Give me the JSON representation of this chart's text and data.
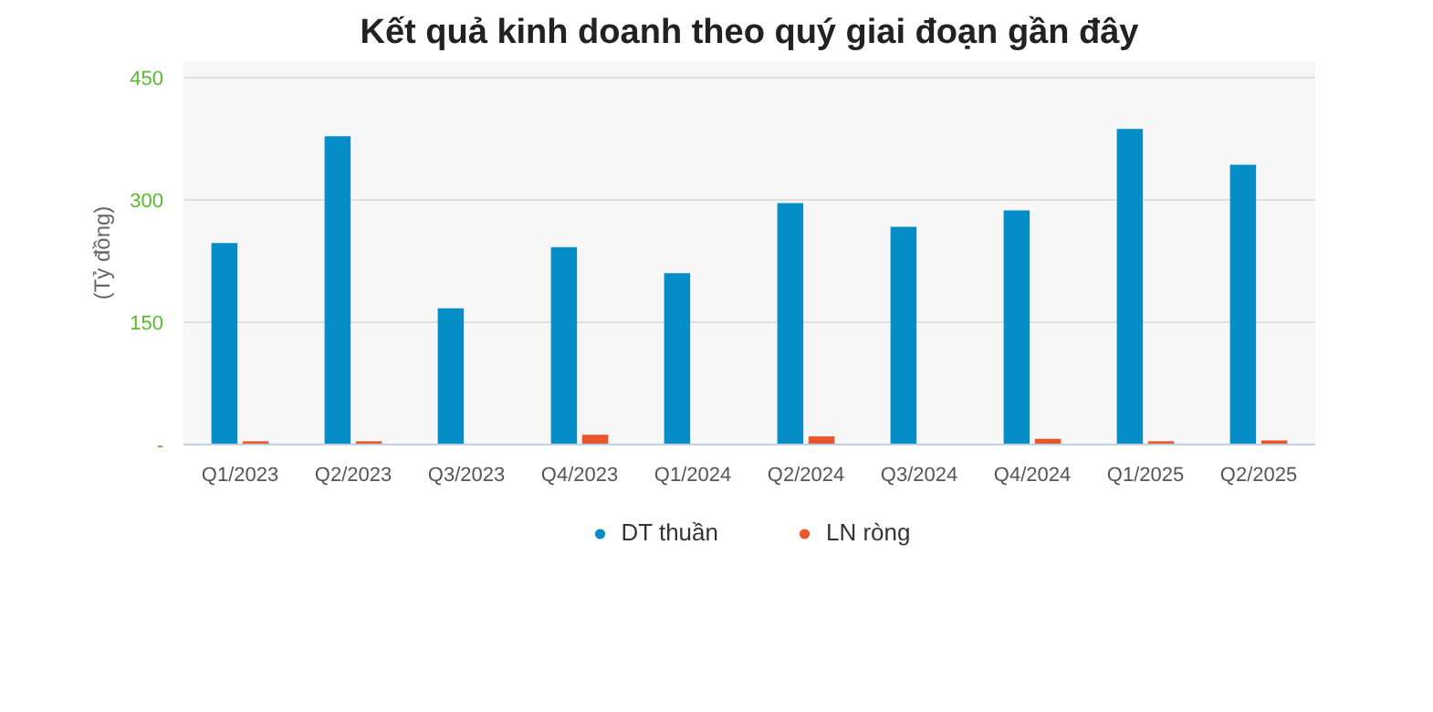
{
  "chart_data": {
    "type": "bar",
    "title": "Kết quả kinh doanh theo quý giai đoạn gần đây",
    "ylabel": "(Tỷ đồng)",
    "categories": [
      "Q1/2023",
      "Q2/2023",
      "Q3/2023",
      "Q4/2023",
      "Q1/2024",
      "Q2/2024",
      "Q3/2024",
      "Q4/2024",
      "Q1/2025",
      "Q2/2025"
    ],
    "series": [
      {
        "name": "DT thuần",
        "color": "#058dc7",
        "values": [
          247,
          378,
          167,
          242,
          210,
          296,
          267,
          287,
          387,
          343
        ]
      },
      {
        "name": "LN ròng",
        "color": "#e8562a",
        "values": [
          4,
          4,
          1,
          12,
          1,
          10,
          1,
          7,
          4,
          5
        ]
      }
    ],
    "ylim": [
      0,
      470
    ],
    "yticks": [
      {
        "value": 0,
        "label": "-"
      },
      150,
      300,
      450
    ],
    "grid": "y",
    "legend": "bottom"
  }
}
